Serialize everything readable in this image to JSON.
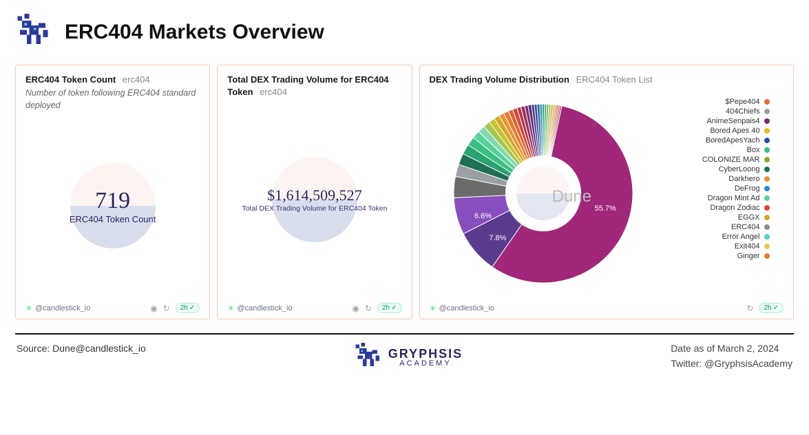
{
  "header": {
    "title": "ERC404 Markets Overview"
  },
  "card1": {
    "title": "ERC404 Token Count",
    "tag": "erc404",
    "subtitle": "Number of token following ERC404 standard deployed",
    "value": "719",
    "label": "ERC404 Token Count",
    "author": "@candlestick_io",
    "refresh": "2h"
  },
  "card2": {
    "title": "Total DEX Trading Volume for ERC404 Token",
    "tag": "erc404",
    "value": "$1,614,509,527",
    "label": "Total DEX Trading Volume for ERC404 Token",
    "author": "@candlestick_io",
    "refresh": "2h"
  },
  "card3": {
    "title": "DEX Trading Volume Distribution",
    "tag": "ERC404 Token List",
    "author": "@candlestick_io",
    "refresh": "2h",
    "watermark": "Dune",
    "chart": {
      "type": "donut",
      "inner_radius_pct": 42,
      "outer_radius_pct": 100,
      "background_color": "#ffffff",
      "labels_shown": [
        {
          "text": "55.7%",
          "angle_deg": 105
        },
        {
          "text": "7.8%",
          "angle_deg": 224
        },
        {
          "text": "6.6%",
          "angle_deg": 248
        }
      ],
      "slices": [
        {
          "value": 55.7,
          "color": "#a0277a"
        },
        {
          "value": 7.8,
          "color": "#5b3b8e"
        },
        {
          "value": 6.6,
          "color": "#8a4fbf"
        },
        {
          "value": 3.8,
          "color": "#6b6b6b"
        },
        {
          "value": 2.2,
          "color": "#9aa0a6"
        },
        {
          "value": 2.0,
          "color": "#1f6f54"
        },
        {
          "value": 1.8,
          "color": "#2aa36f"
        },
        {
          "value": 1.6,
          "color": "#3bbf84"
        },
        {
          "value": 1.4,
          "color": "#5bd19a"
        },
        {
          "value": 1.3,
          "color": "#82d9b2"
        },
        {
          "value": 1.2,
          "color": "#a6c84e"
        },
        {
          "value": 1.1,
          "color": "#c9c233"
        },
        {
          "value": 1.0,
          "color": "#d7a62b"
        },
        {
          "value": 0.9,
          "color": "#e79330"
        },
        {
          "value": 0.9,
          "color": "#e37b2f"
        },
        {
          "value": 0.8,
          "color": "#d96436"
        },
        {
          "value": 0.8,
          "color": "#cf4a3d"
        },
        {
          "value": 0.7,
          "color": "#b63a4a"
        },
        {
          "value": 0.7,
          "color": "#9a3160"
        },
        {
          "value": 0.6,
          "color": "#7c2d72"
        },
        {
          "value": 0.6,
          "color": "#5f2c7a"
        },
        {
          "value": 0.5,
          "color": "#4a3a8a"
        },
        {
          "value": 0.5,
          "color": "#3a4f99"
        },
        {
          "value": 0.5,
          "color": "#2d6aa8"
        },
        {
          "value": 0.4,
          "color": "#2a86a0"
        },
        {
          "value": 0.4,
          "color": "#2ea08a"
        },
        {
          "value": 0.4,
          "color": "#4db07a"
        },
        {
          "value": 0.4,
          "color": "#7abb6a"
        },
        {
          "value": 0.4,
          "color": "#a6c25e"
        },
        {
          "value": 0.4,
          "color": "#c9b851"
        },
        {
          "value": 0.3,
          "color": "#d6a048"
        },
        {
          "value": 0.3,
          "color": "#d88545"
        },
        {
          "value": 0.3,
          "color": "#cf6b48"
        },
        {
          "value": 0.3,
          "color": "#b85a56"
        },
        {
          "value": 0.3,
          "color": "#9b5068"
        }
      ],
      "legend": [
        {
          "label": "$Pepe404",
          "color": "#e66b3a"
        },
        {
          "label": "404Chiefs",
          "color": "#9aa0a6"
        },
        {
          "label": "AnimeSenpais4",
          "color": "#7c2d72"
        },
        {
          "label": "Bored Apes 40",
          "color": "#e8b923"
        },
        {
          "label": "BoredApesYach",
          "color": "#2d4ea8"
        },
        {
          "label": "Box",
          "color": "#3bbf84"
        },
        {
          "label": "COLONIZE MAR",
          "color": "#8aa636"
        },
        {
          "label": "CyberLoong",
          "color": "#1f6f54"
        },
        {
          "label": "Darkhero",
          "color": "#e79330"
        },
        {
          "label": "DeFrog",
          "color": "#2a86d8"
        },
        {
          "label": "Dragon Mint Ad",
          "color": "#5bd19a"
        },
        {
          "label": "Dragon Zodiac",
          "color": "#d9453a"
        },
        {
          "label": "EGGX",
          "color": "#d7a62b"
        },
        {
          "label": "ERC404",
          "color": "#8a8a8a"
        },
        {
          "label": "Error Angel",
          "color": "#4fd1c5"
        },
        {
          "label": "Exit404",
          "color": "#e8c94b"
        },
        {
          "label": "Ginger",
          "color": "#e37b2f"
        }
      ]
    }
  },
  "footer": {
    "source": "Source: Dune@candlestick_io",
    "brand_line1": "GRYPHSIS",
    "brand_line2": "ACADEMY",
    "date": "Date as of March 2, 2024",
    "twitter": "Twitter: @GryphsisAcademy"
  },
  "colors": {
    "card_border": "#f5c9b8",
    "metric_text": "#2b2560",
    "brand_blue": "#2b3a9a"
  }
}
